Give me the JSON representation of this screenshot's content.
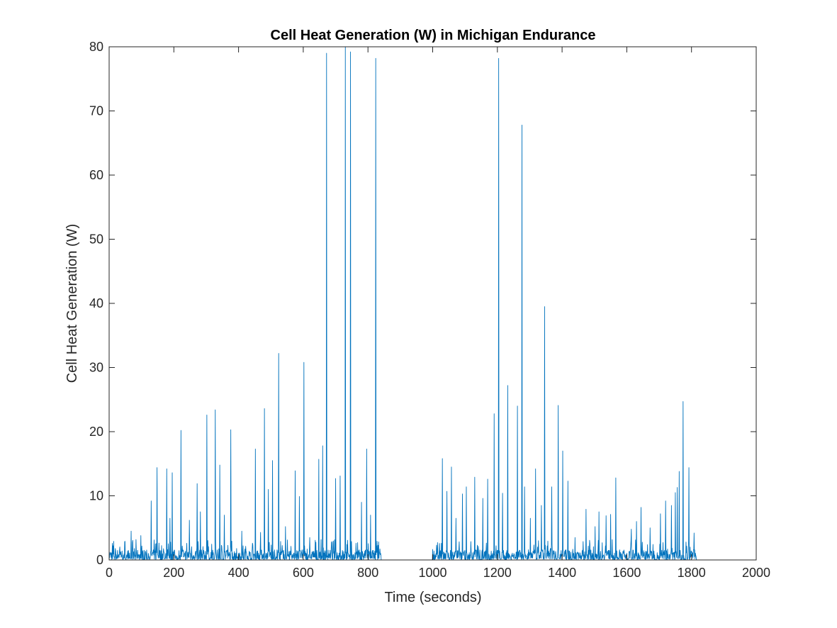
{
  "colors": {
    "series": "#0072BD",
    "axes": "#262626",
    "background": "#ffffff"
  },
  "chart_data": {
    "type": "line",
    "title": "Cell Heat Generation (W) in Michigan Endurance",
    "xlabel": "Time (seconds)",
    "ylabel": "Cell Heat Generation (W)",
    "xlim": [
      0,
      2000
    ],
    "ylim": [
      0,
      80
    ],
    "xticks": [
      0,
      200,
      400,
      600,
      800,
      1000,
      1200,
      1400,
      1600,
      1800,
      2000
    ],
    "yticks": [
      0,
      10,
      20,
      30,
      40,
      50,
      60,
      70,
      80
    ],
    "grid": false,
    "legend": "none",
    "data_range": {
      "x_start": 0,
      "x_end": 1815,
      "idle_interval": [
        840,
        1000
      ]
    },
    "peaks": [
      {
        "x": 68,
        "y": 4.5
      },
      {
        "x": 98,
        "y": 3.8
      },
      {
        "x": 130,
        "y": 9.2
      },
      {
        "x": 148,
        "y": 14.4
      },
      {
        "x": 178,
        "y": 14.2
      },
      {
        "x": 188,
        "y": 6.5
      },
      {
        "x": 195,
        "y": 13.6
      },
      {
        "x": 222,
        "y": 20.2
      },
      {
        "x": 248,
        "y": 6.2
      },
      {
        "x": 272,
        "y": 11.9
      },
      {
        "x": 282,
        "y": 7.5
      },
      {
        "x": 302,
        "y": 22.6
      },
      {
        "x": 328,
        "y": 23.4
      },
      {
        "x": 342,
        "y": 14.8
      },
      {
        "x": 356,
        "y": 7.0
      },
      {
        "x": 376,
        "y": 20.3
      },
      {
        "x": 410,
        "y": 4.5
      },
      {
        "x": 452,
        "y": 17.3
      },
      {
        "x": 468,
        "y": 4.3
      },
      {
        "x": 480,
        "y": 23.6
      },
      {
        "x": 492,
        "y": 11.0
      },
      {
        "x": 505,
        "y": 15.5
      },
      {
        "x": 524,
        "y": 32.2
      },
      {
        "x": 545,
        "y": 5.2
      },
      {
        "x": 575,
        "y": 13.9
      },
      {
        "x": 588,
        "y": 9.9
      },
      {
        "x": 602,
        "y": 30.8
      },
      {
        "x": 620,
        "y": 3.5
      },
      {
        "x": 648,
        "y": 15.7
      },
      {
        "x": 660,
        "y": 17.8
      },
      {
        "x": 672,
        "y": 79.0
      },
      {
        "x": 700,
        "y": 12.7
      },
      {
        "x": 714,
        "y": 13.1
      },
      {
        "x": 730,
        "y": 80.0
      },
      {
        "x": 746,
        "y": 79.2
      },
      {
        "x": 780,
        "y": 9.0
      },
      {
        "x": 796,
        "y": 17.3
      },
      {
        "x": 808,
        "y": 7.0
      },
      {
        "x": 824,
        "y": 78.2
      },
      {
        "x": 1030,
        "y": 15.8
      },
      {
        "x": 1044,
        "y": 10.7
      },
      {
        "x": 1058,
        "y": 14.5
      },
      {
        "x": 1072,
        "y": 6.5
      },
      {
        "x": 1092,
        "y": 10.3
      },
      {
        "x": 1104,
        "y": 11.4
      },
      {
        "x": 1130,
        "y": 12.9
      },
      {
        "x": 1155,
        "y": 9.6
      },
      {
        "x": 1170,
        "y": 12.6
      },
      {
        "x": 1190,
        "y": 22.8
      },
      {
        "x": 1204,
        "y": 78.2
      },
      {
        "x": 1216,
        "y": 10.4
      },
      {
        "x": 1232,
        "y": 27.2
      },
      {
        "x": 1262,
        "y": 24.0
      },
      {
        "x": 1276,
        "y": 67.8
      },
      {
        "x": 1284,
        "y": 11.4
      },
      {
        "x": 1302,
        "y": 6.5
      },
      {
        "x": 1318,
        "y": 14.2
      },
      {
        "x": 1336,
        "y": 8.5
      },
      {
        "x": 1346,
        "y": 39.5
      },
      {
        "x": 1368,
        "y": 11.4
      },
      {
        "x": 1388,
        "y": 24.1
      },
      {
        "x": 1402,
        "y": 17.0
      },
      {
        "x": 1418,
        "y": 12.3
      },
      {
        "x": 1440,
        "y": 3.5
      },
      {
        "x": 1474,
        "y": 7.9
      },
      {
        "x": 1502,
        "y": 5.2
      },
      {
        "x": 1514,
        "y": 7.5
      },
      {
        "x": 1536,
        "y": 6.9
      },
      {
        "x": 1550,
        "y": 7.1
      },
      {
        "x": 1566,
        "y": 12.8
      },
      {
        "x": 1614,
        "y": 4.8
      },
      {
        "x": 1630,
        "y": 6.0
      },
      {
        "x": 1644,
        "y": 8.2
      },
      {
        "x": 1672,
        "y": 5.0
      },
      {
        "x": 1704,
        "y": 7.2
      },
      {
        "x": 1720,
        "y": 9.2
      },
      {
        "x": 1738,
        "y": 8.5
      },
      {
        "x": 1750,
        "y": 10.5
      },
      {
        "x": 1756,
        "y": 11.3
      },
      {
        "x": 1762,
        "y": 13.8
      },
      {
        "x": 1774,
        "y": 24.7
      },
      {
        "x": 1792,
        "y": 14.4
      },
      {
        "x": 1808,
        "y": 4.2
      }
    ]
  }
}
